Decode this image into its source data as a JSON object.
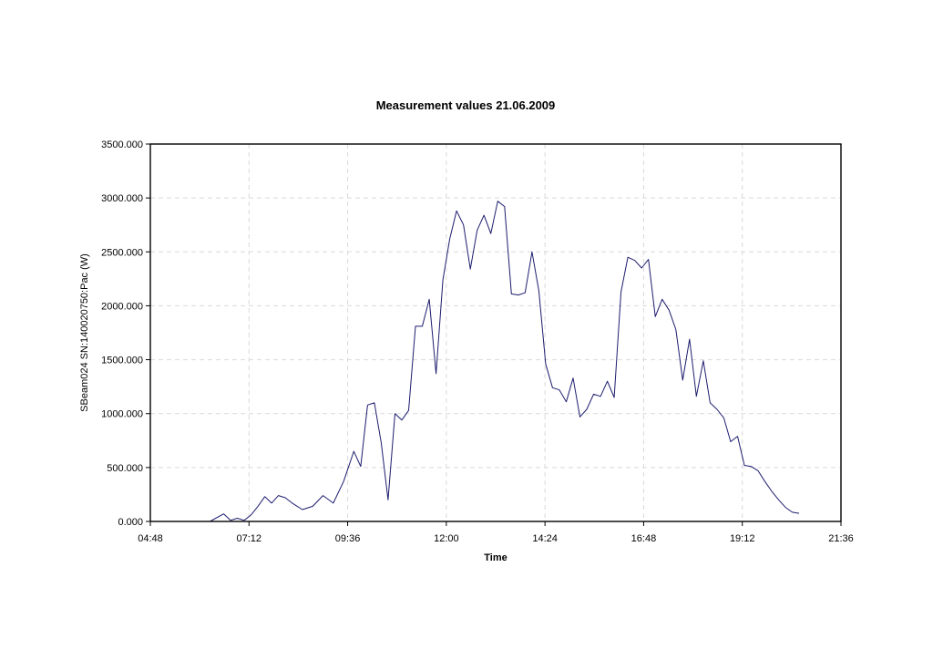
{
  "colors": {
    "series": "#1c1c6e",
    "frame": "#000000",
    "grid": "#d9d9d9"
  },
  "chart_data": {
    "type": "line",
    "title": "Measurement values 21.06.2009",
    "xlabel": "Time",
    "ylabel": "SBeam024 SN:140020750:Pac (W)",
    "xlim": [
      "04:48",
      "21:36"
    ],
    "ylim": [
      0,
      3500
    ],
    "x_ticks": [
      "04:48",
      "07:12",
      "09:36",
      "12:00",
      "14:24",
      "16:48",
      "19:12",
      "21:36"
    ],
    "y_ticks": [
      "0.000",
      "500.000",
      "1000.000",
      "1500.000",
      "2000.000",
      "2500.000",
      "3000.000",
      "3500.000"
    ],
    "grid": true,
    "legend": "none",
    "series": [
      {
        "x": [
          "06:15",
          "06:35",
          "06:45",
          "06:55",
          "07:05",
          "07:15",
          "07:25",
          "07:35",
          "07:45",
          "07:55",
          "08:05",
          "08:15",
          "08:30",
          "08:45",
          "09:00",
          "09:15",
          "09:30",
          "09:45",
          "09:55",
          "10:05",
          "10:15",
          "10:25",
          "10:35",
          "10:45",
          "10:55",
          "11:05",
          "11:15",
          "11:25",
          "11:35",
          "11:45",
          "11:55",
          "12:05",
          "12:15",
          "12:25",
          "12:35",
          "12:45",
          "12:55",
          "13:05",
          "13:15",
          "13:25",
          "13:35",
          "13:45",
          "13:55",
          "14:05",
          "14:15",
          "14:25",
          "14:35",
          "14:45",
          "14:55",
          "15:05",
          "15:15",
          "15:25",
          "15:35",
          "15:45",
          "15:55",
          "16:05",
          "16:15",
          "16:25",
          "16:35",
          "16:45",
          "16:55",
          "17:05",
          "17:15",
          "17:25",
          "17:35",
          "17:45",
          "17:55",
          "18:05",
          "18:15",
          "18:25",
          "18:35",
          "18:45",
          "18:55",
          "19:05",
          "19:15",
          "19:25",
          "19:35",
          "19:45",
          "19:55",
          "20:05",
          "20:15",
          "20:25",
          "20:35"
        ],
        "y": [
          0,
          70,
          10,
          30,
          10,
          60,
          140,
          230,
          170,
          240,
          220,
          170,
          110,
          140,
          240,
          170,
          370,
          650,
          510,
          1080,
          1100,
          730,
          200,
          1000,
          940,
          1030,
          1810,
          1810,
          2060,
          1370,
          2240,
          2620,
          2880,
          2750,
          2340,
          2700,
          2840,
          2670,
          2970,
          2920,
          2110,
          2100,
          2120,
          2500,
          2140,
          1460,
          1240,
          1220,
          1110,
          1330,
          970,
          1040,
          1180,
          1160,
          1300,
          1150,
          2130,
          2450,
          2420,
          2350,
          2430,
          1900,
          2060,
          1960,
          1780,
          1310,
          1690,
          1160,
          1490,
          1100,
          1040,
          960,
          740,
          790,
          520,
          510,
          470,
          370,
          280,
          200,
          130,
          85,
          75
        ]
      }
    ]
  }
}
